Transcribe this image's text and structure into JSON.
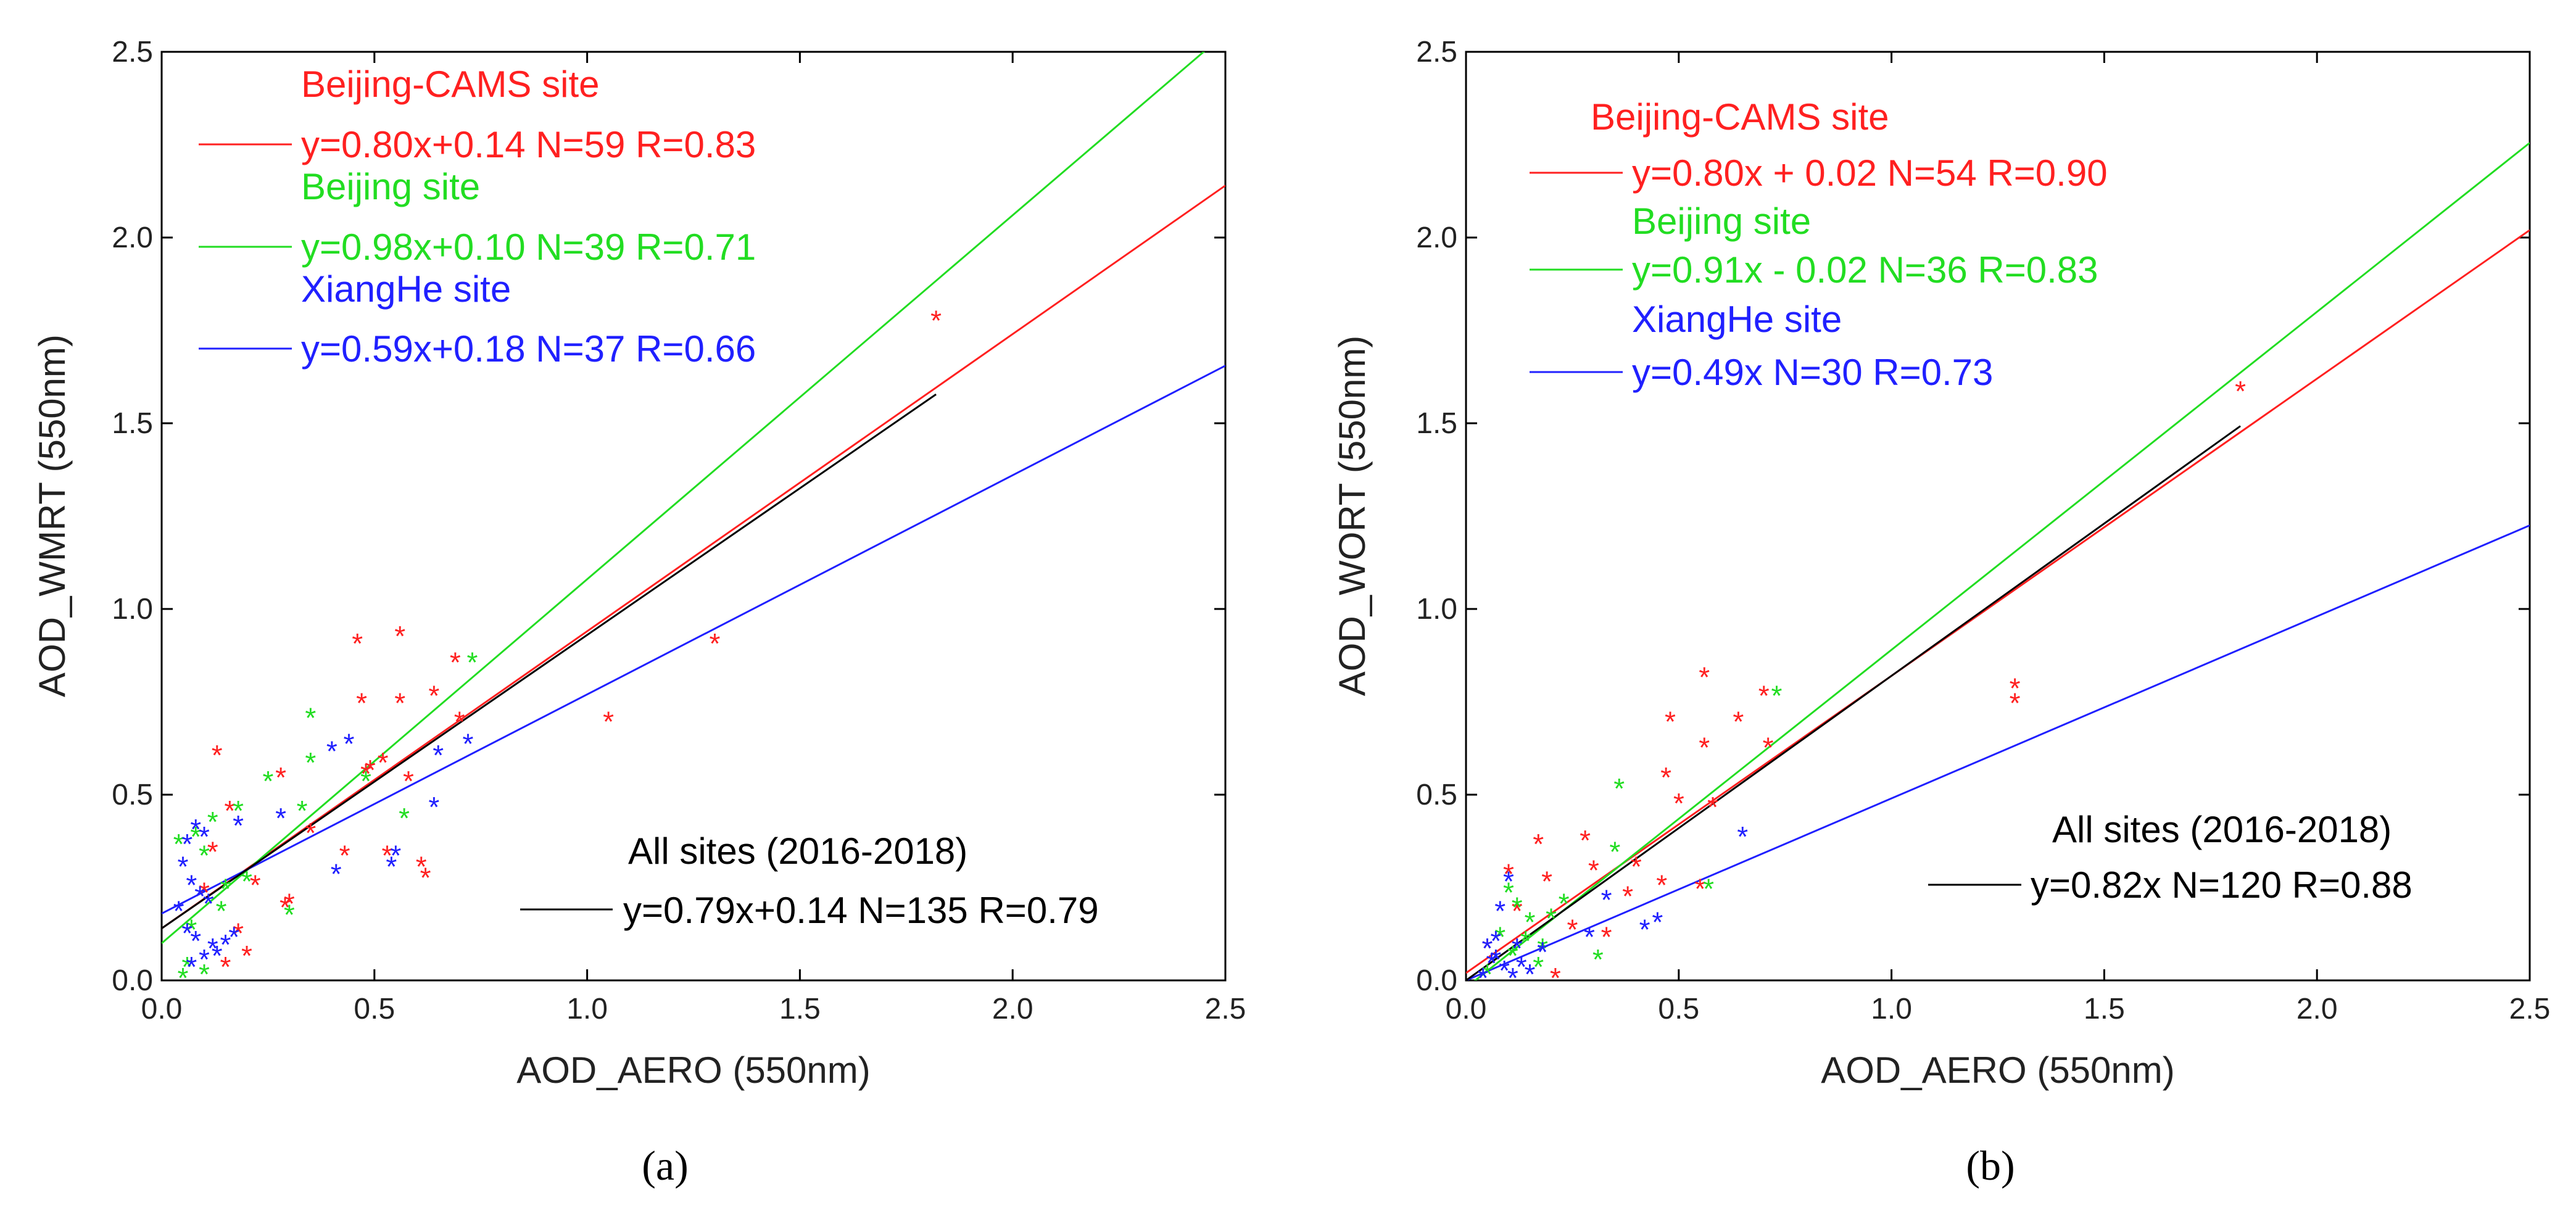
{
  "chart_data": [
    {
      "type": "scatter",
      "panel_label": "a",
      "caption": "(a)",
      "xlabel": "AOD_AERO (550nm)",
      "ylabel": "AOD_WMRT (550nm)",
      "xlim": [
        0.0,
        2.5
      ],
      "ylim": [
        0.0,
        2.5
      ],
      "xticks": [
        "0.0",
        "0.5",
        "1.0",
        "1.5",
        "2.0",
        "2.5"
      ],
      "yticks": [
        "0.0",
        "0.5",
        "1.0",
        "1.5",
        "2.0",
        "2.5"
      ],
      "series": [
        {
          "name": "Beijing-CAMS site",
          "color": "#ff2020",
          "fit_label": "y=0.80x+0.14 N=59   R=0.83",
          "fit": {
            "slope": 0.8,
            "intercept": 0.14,
            "x_range": [
              0.0,
              2.5
            ]
          },
          "points": [
            [
              0.13,
              0.62
            ],
            [
              0.16,
              0.47
            ],
            [
              0.28,
              0.56
            ],
            [
              0.3,
              0.22
            ],
            [
              0.29,
              0.21
            ],
            [
              0.46,
              0.92
            ],
            [
              0.56,
              0.94
            ],
            [
              0.47,
              0.76
            ],
            [
              0.56,
              0.76
            ],
            [
              0.64,
              0.78
            ],
            [
              0.69,
              0.87
            ],
            [
              0.7,
              0.71
            ],
            [
              0.48,
              0.57
            ],
            [
              0.49,
              0.58
            ],
            [
              0.53,
              0.35
            ],
            [
              0.58,
              0.55
            ],
            [
              0.61,
              0.32
            ],
            [
              0.62,
              0.29
            ],
            [
              1.05,
              0.71
            ],
            [
              1.3,
              0.92
            ],
            [
              1.82,
              1.79
            ],
            [
              0.15,
              0.05
            ],
            [
              0.2,
              0.08
            ],
            [
              0.18,
              0.14
            ],
            [
              0.22,
              0.27
            ],
            [
              0.12,
              0.36
            ],
            [
              0.1,
              0.25
            ],
            [
              0.43,
              0.35
            ],
            [
              0.52,
              0.6
            ],
            [
              0.35,
              0.41
            ]
          ]
        },
        {
          "name": "Beijing site",
          "color": "#22dd22",
          "fit_label": "y=0.98x+0.10 N=39   R=0.71",
          "fit": {
            "slope": 0.98,
            "intercept": 0.1,
            "x_range": [
              0.0,
              2.5
            ]
          },
          "points": [
            [
              0.35,
              0.72
            ],
            [
              0.35,
              0.6
            ],
            [
              0.73,
              0.87
            ],
            [
              0.48,
              0.55
            ],
            [
              0.57,
              0.45
            ],
            [
              0.33,
              0.47
            ],
            [
              0.25,
              0.55
            ],
            [
              0.18,
              0.47
            ],
            [
              0.08,
              0.4
            ],
            [
              0.05,
              0.02
            ],
            [
              0.06,
              0.05
            ],
            [
              0.1,
              0.03
            ],
            [
              0.12,
              0.44
            ],
            [
              0.1,
              0.35
            ],
            [
              0.15,
              0.26
            ],
            [
              0.3,
              0.19
            ],
            [
              0.07,
              0.15
            ],
            [
              0.04,
              0.38
            ],
            [
              0.2,
              0.28
            ],
            [
              0.14,
              0.2
            ]
          ]
        },
        {
          "name": "XiangHe site",
          "color": "#2020ff",
          "fit_label": "y=0.59x+0.18 N=37   R=0.66",
          "fit": {
            "slope": 0.59,
            "intercept": 0.18,
            "x_range": [
              0.0,
              2.5
            ]
          },
          "points": [
            [
              0.44,
              0.65
            ],
            [
              0.4,
              0.63
            ],
            [
              0.65,
              0.62
            ],
            [
              0.72,
              0.65
            ],
            [
              0.64,
              0.48
            ],
            [
              0.55,
              0.35
            ],
            [
              0.54,
              0.32
            ],
            [
              0.41,
              0.3
            ],
            [
              0.28,
              0.45
            ],
            [
              0.18,
              0.43
            ],
            [
              0.08,
              0.42
            ],
            [
              0.1,
              0.4
            ],
            [
              0.06,
              0.38
            ],
            [
              0.05,
              0.32
            ],
            [
              0.07,
              0.27
            ],
            [
              0.09,
              0.24
            ],
            [
              0.11,
              0.22
            ],
            [
              0.04,
              0.2
            ],
            [
              0.06,
              0.14
            ],
            [
              0.08,
              0.12
            ],
            [
              0.12,
              0.1
            ],
            [
              0.15,
              0.11
            ],
            [
              0.1,
              0.07
            ],
            [
              0.07,
              0.05
            ],
            [
              0.13,
              0.08
            ],
            [
              0.17,
              0.13
            ]
          ]
        }
      ],
      "all_sites": {
        "title": "All sites (2016-2018)",
        "fit_label": "y=0.79x+0.14 N=135 R=0.79",
        "color": "#000000",
        "fit": {
          "slope": 0.79,
          "intercept": 0.14,
          "x_range": [
            0.0,
            1.82
          ]
        }
      }
    },
    {
      "type": "scatter",
      "panel_label": "b",
      "caption": "(b)",
      "xlabel": "AOD_AERO (550nm)",
      "ylabel": "AOD_WORT (550nm)",
      "xlim": [
        0.0,
        2.5
      ],
      "ylim": [
        0.0,
        2.5
      ],
      "xticks": [
        "0.0",
        "0.5",
        "1.0",
        "1.5",
        "2.0",
        "2.5"
      ],
      "yticks": [
        "0.0",
        "0.5",
        "1.0",
        "1.5",
        "2.0",
        "2.5"
      ],
      "series": [
        {
          "name": "Beijing-CAMS site",
          "color": "#ff2020",
          "fit_label": "y=0.80x + 0.02 N=54 R=0.90",
          "fit": {
            "slope": 0.8,
            "intercept": 0.02,
            "x_range": [
              0.0,
              2.5
            ]
          },
          "points": [
            [
              0.56,
              0.83
            ],
            [
              0.48,
              0.71
            ],
            [
              0.7,
              0.78
            ],
            [
              0.71,
              0.64
            ],
            [
              0.64,
              0.71
            ],
            [
              0.47,
              0.56
            ],
            [
              0.5,
              0.49
            ],
            [
              0.58,
              0.48
            ],
            [
              0.56,
              0.64
            ],
            [
              0.28,
              0.39
            ],
            [
              0.3,
              0.31
            ],
            [
              0.38,
              0.24
            ],
            [
              0.17,
              0.38
            ],
            [
              0.19,
              0.28
            ],
            [
              0.1,
              0.3
            ],
            [
              0.12,
              0.2
            ],
            [
              0.05,
              0.1
            ],
            [
              0.21,
              0.02
            ],
            [
              0.46,
              0.27
            ],
            [
              0.55,
              0.26
            ],
            [
              1.29,
              0.8
            ],
            [
              1.29,
              0.76
            ],
            [
              1.82,
              1.6
            ],
            [
              0.33,
              0.13
            ],
            [
              0.25,
              0.15
            ],
            [
              0.4,
              0.32
            ]
          ]
        },
        {
          "name": "Beijing site",
          "color": "#22dd22",
          "fit_label": "y=0.91x - 0.02 N=36 R=0.83",
          "fit": {
            "slope": 0.91,
            "intercept": -0.02,
            "x_range": [
              0.02,
              2.5
            ]
          },
          "points": [
            [
              0.73,
              0.78
            ],
            [
              0.36,
              0.53
            ],
            [
              0.35,
              0.36
            ],
            [
              0.57,
              0.26
            ],
            [
              0.31,
              0.07
            ],
            [
              0.2,
              0.18
            ],
            [
              0.1,
              0.25
            ],
            [
              0.12,
              0.21
            ],
            [
              0.15,
              0.17
            ],
            [
              0.17,
              0.05
            ],
            [
              0.08,
              0.13
            ],
            [
              0.11,
              0.08
            ],
            [
              0.14,
              0.12
            ],
            [
              0.23,
              0.22
            ],
            [
              0.05,
              0.03
            ],
            [
              0.18,
              0.1
            ]
          ]
        },
        {
          "name": "XiangHe site",
          "color": "#2020ff",
          "fit_label": "y=0.49x  N=30 R=0.73",
          "fit": {
            "slope": 0.49,
            "intercept": 0.0,
            "x_range": [
              0.0,
              2.5
            ]
          },
          "points": [
            [
              0.65,
              0.4
            ],
            [
              0.42,
              0.15
            ],
            [
              0.45,
              0.17
            ],
            [
              0.33,
              0.23
            ],
            [
              0.29,
              0.13
            ],
            [
              0.18,
              0.09
            ],
            [
              0.1,
              0.28
            ],
            [
              0.08,
              0.2
            ],
            [
              0.07,
              0.12
            ],
            [
              0.05,
              0.1
            ],
            [
              0.06,
              0.06
            ],
            [
              0.09,
              0.04
            ],
            [
              0.11,
              0.02
            ],
            [
              0.13,
              0.05
            ],
            [
              0.04,
              0.02
            ],
            [
              0.07,
              0.07
            ],
            [
              0.15,
              0.03
            ],
            [
              0.12,
              0.1
            ]
          ]
        }
      ],
      "all_sites": {
        "title": "All sites (2016-2018)",
        "fit_label": "y=0.82x N=120 R=0.88",
        "color": "#000000",
        "fit": {
          "slope": 0.82,
          "intercept": 0.0,
          "x_range": [
            0.0,
            1.82
          ]
        }
      }
    }
  ]
}
